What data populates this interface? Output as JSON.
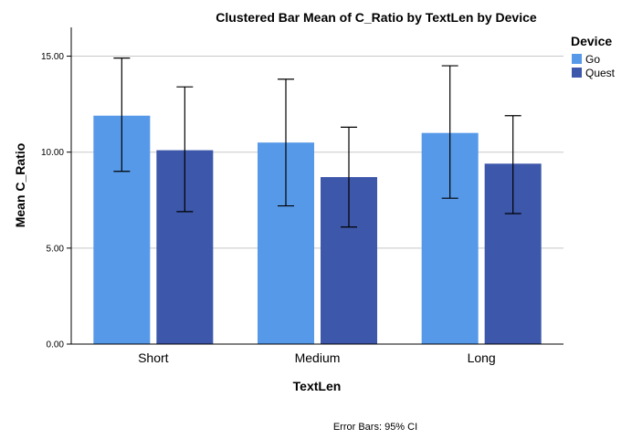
{
  "chart_data": {
    "type": "bar",
    "title": "Clustered Bar Mean of C_Ratio by TextLen by Device",
    "xlabel": "TextLen",
    "ylabel": "Mean C_Ratio",
    "categories": [
      "Short",
      "Medium",
      "Long"
    ],
    "ylim": [
      0,
      16.5
    ],
    "yticks": [
      0,
      5,
      10,
      15
    ],
    "ytick_labels": [
      "0.00",
      "5.00",
      "10.00",
      "15.00"
    ],
    "grid": true,
    "legend": {
      "title": "Device",
      "placement": "top-right"
    },
    "series": [
      {
        "name": "Go",
        "color": "#5699e8",
        "values": [
          11.9,
          10.5,
          11.0
        ],
        "ci_low": [
          9.0,
          7.2,
          7.6
        ],
        "ci_high": [
          14.9,
          13.8,
          14.5
        ]
      },
      {
        "name": "Quest",
        "color": "#3d57aa",
        "values": [
          10.1,
          8.7,
          9.4
        ],
        "ci_low": [
          6.9,
          6.1,
          6.8
        ],
        "ci_high": [
          13.4,
          11.3,
          11.9
        ]
      }
    ],
    "footnote": "Error Bars: 95% CI"
  }
}
